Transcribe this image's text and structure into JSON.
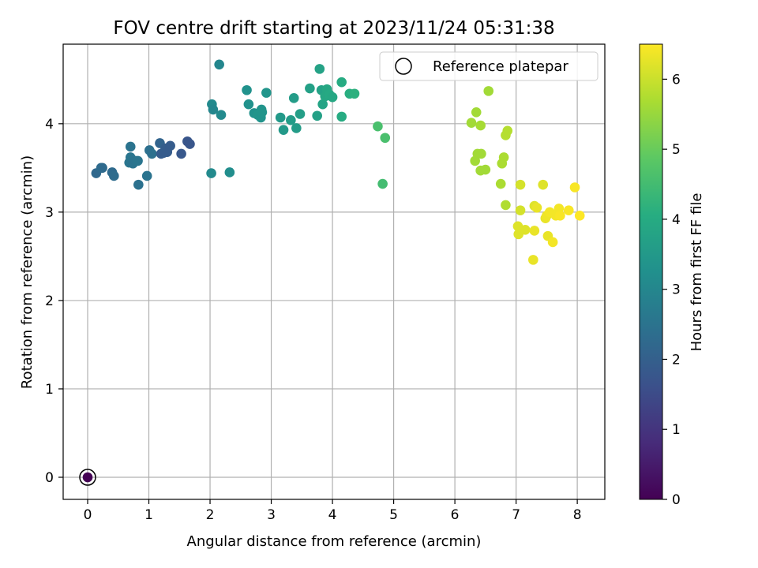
{
  "chart_data": {
    "type": "scatter",
    "title": "FOV centre drift starting at 2023/11/24 05:31:38",
    "xlabel": "Angular distance from reference (arcmin)",
    "ylabel": "Rotation from reference (arcmin)",
    "xlim": [
      -0.4,
      8.45
    ],
    "ylim": [
      -0.25,
      4.9
    ],
    "xticks": [
      "0",
      "1",
      "2",
      "3",
      "4",
      "5",
      "6",
      "7",
      "8"
    ],
    "yticks": [
      "0",
      "1",
      "2",
      "3",
      "4"
    ],
    "grid": true,
    "legend": {
      "position": "top-right",
      "entries": [
        "Reference platepar"
      ]
    },
    "colorbar": {
      "label": "Hours from first FF file",
      "range": [
        0,
        6.5
      ],
      "ticks": [
        "0",
        "1",
        "2",
        "3",
        "4",
        "5",
        "6"
      ],
      "colormap": "viridis"
    },
    "reference": {
      "x": 0,
      "y": 0,
      "c": 0,
      "label": "Reference platepar"
    },
    "points": [
      [
        0.14,
        3.44,
        2.2
      ],
      [
        0.22,
        3.5,
        2.3
      ],
      [
        0.24,
        3.5,
        2.25
      ],
      [
        0.4,
        3.45,
        2.25
      ],
      [
        0.43,
        3.41,
        2.3
      ],
      [
        0.7,
        3.74,
        2.5
      ],
      [
        0.7,
        3.62,
        2.55
      ],
      [
        0.68,
        3.56,
        2.55
      ],
      [
        0.74,
        3.55,
        2.5
      ],
      [
        0.78,
        3.58,
        2.5
      ],
      [
        0.82,
        3.58,
        2.55
      ],
      [
        0.83,
        3.31,
        2.45
      ],
      [
        0.97,
        3.41,
        2.5
      ],
      [
        1.01,
        3.7,
        2.4
      ],
      [
        1.05,
        3.66,
        2.4
      ],
      [
        1.18,
        3.78,
        2.1
      ],
      [
        1.2,
        3.66,
        1.9
      ],
      [
        1.24,
        3.67,
        1.9
      ],
      [
        1.27,
        3.72,
        1.95
      ],
      [
        1.3,
        3.68,
        1.9
      ],
      [
        1.35,
        3.75,
        1.9
      ],
      [
        1.53,
        3.66,
        1.8
      ],
      [
        1.63,
        3.8,
        1.75
      ],
      [
        1.67,
        3.77,
        1.75
      ],
      [
        2.02,
        3.44,
        3.1
      ],
      [
        2.03,
        4.22,
        3.1
      ],
      [
        2.05,
        4.16,
        3.0
      ],
      [
        2.15,
        4.67,
        3.0
      ],
      [
        2.18,
        4.1,
        3.1
      ],
      [
        2.32,
        3.45,
        3.2
      ],
      [
        2.6,
        4.38,
        3.3
      ],
      [
        2.63,
        4.22,
        3.3
      ],
      [
        2.72,
        4.12,
        3.3
      ],
      [
        2.78,
        4.1,
        3.4
      ],
      [
        2.83,
        4.07,
        3.35
      ],
      [
        2.84,
        4.16,
        3.35
      ],
      [
        2.85,
        4.13,
        3.4
      ],
      [
        2.92,
        4.35,
        3.4
      ],
      [
        3.15,
        4.07,
        3.5
      ],
      [
        3.2,
        3.93,
        3.5
      ],
      [
        3.32,
        4.04,
        3.6
      ],
      [
        3.37,
        4.29,
        3.6
      ],
      [
        3.41,
        3.95,
        3.6
      ],
      [
        3.47,
        4.11,
        3.65
      ],
      [
        3.63,
        4.4,
        3.7
      ],
      [
        3.75,
        4.09,
        3.7
      ],
      [
        3.79,
        4.62,
        3.75
      ],
      [
        3.82,
        4.38,
        3.75
      ],
      [
        3.84,
        4.22,
        3.8
      ],
      [
        3.88,
        4.31,
        3.9
      ],
      [
        3.91,
        4.39,
        3.9
      ],
      [
        3.95,
        4.33,
        3.95
      ],
      [
        4.0,
        4.3,
        3.9
      ],
      [
        4.15,
        4.47,
        4.0
      ],
      [
        4.15,
        4.08,
        4.0
      ],
      [
        4.28,
        4.34,
        4.1
      ],
      [
        4.36,
        4.34,
        4.15
      ],
      [
        4.74,
        3.97,
        4.6
      ],
      [
        4.82,
        3.32,
        4.5
      ],
      [
        4.86,
        3.84,
        4.6
      ],
      [
        6.27,
        4.01,
        5.6
      ],
      [
        6.33,
        3.58,
        5.6
      ],
      [
        6.35,
        4.13,
        5.6
      ],
      [
        6.37,
        3.66,
        5.6
      ],
      [
        6.42,
        3.98,
        5.65
      ],
      [
        6.42,
        3.47,
        5.6
      ],
      [
        6.43,
        3.66,
        5.6
      ],
      [
        6.5,
        3.48,
        5.6
      ],
      [
        6.55,
        4.37,
        5.6
      ],
      [
        6.75,
        3.32,
        5.7
      ],
      [
        6.77,
        3.55,
        5.7
      ],
      [
        6.8,
        3.62,
        5.7
      ],
      [
        6.83,
        3.08,
        5.75
      ],
      [
        6.83,
        3.87,
        5.8
      ],
      [
        6.86,
        3.92,
        5.8
      ],
      [
        7.03,
        2.84,
        6.2
      ],
      [
        7.04,
        2.75,
        6.2
      ],
      [
        7.07,
        3.31,
        6.1
      ],
      [
        7.07,
        3.02,
        6.1
      ],
      [
        7.15,
        2.8,
        6.2
      ],
      [
        7.28,
        2.46,
        6.3
      ],
      [
        7.3,
        3.07,
        6.2
      ],
      [
        7.3,
        2.79,
        6.3
      ],
      [
        7.34,
        3.05,
        6.3
      ],
      [
        7.44,
        3.31,
        6.2
      ],
      [
        7.48,
        2.93,
        6.3
      ],
      [
        7.5,
        2.96,
        6.35
      ],
      [
        7.52,
        2.73,
        6.3
      ],
      [
        7.55,
        3.0,
        6.4
      ],
      [
        7.6,
        2.66,
        6.4
      ],
      [
        7.65,
        2.96,
        6.4
      ],
      [
        7.7,
        3.04,
        6.4
      ],
      [
        7.72,
        2.96,
        6.45
      ],
      [
        7.86,
        3.02,
        6.45
      ],
      [
        7.96,
        3.28,
        6.45
      ],
      [
        8.04,
        2.96,
        6.5
      ]
    ]
  }
}
